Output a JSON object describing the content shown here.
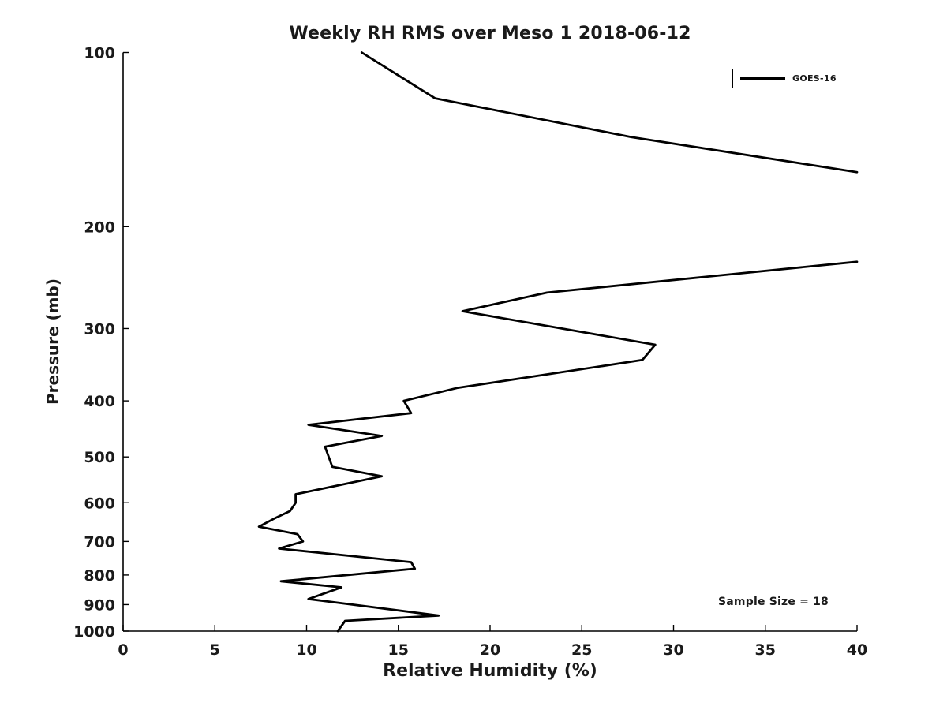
{
  "page": {
    "background": "#ffffff"
  },
  "chart_data": {
    "type": "line",
    "title": "Weekly RH RMS over Meso 1 2018-06-12",
    "xlabel": "Relative Humidity (%)",
    "ylabel": "Pressure (mb)",
    "xlim": [
      0,
      40
    ],
    "ylim": [
      100,
      1000
    ],
    "y_scale": "log",
    "y_inverted": true,
    "grid": false,
    "x_ticks": [
      0,
      5,
      10,
      15,
      20,
      25,
      30,
      35,
      40
    ],
    "y_ticks": [
      100,
      200,
      300,
      400,
      500,
      600,
      700,
      800,
      900,
      1000
    ],
    "legend": {
      "position": "top-right",
      "label": "GOES-16",
      "line_color": "#000000"
    },
    "annotation": {
      "text": "Sample Size = 18"
    },
    "series": [
      {
        "name": "GOES-16",
        "color": "#000000",
        "line_width": 2.8,
        "clipped_at_xmax": true,
        "points_format": [
          "pressure_mb",
          "rh_percent"
        ],
        "segments": [
          [
            [
              100,
              13.0
            ],
            [
              120,
              17.0
            ],
            [
              140,
              27.7
            ],
            [
              161,
              40.0
            ]
          ],
          [
            [
              230,
              40.0
            ],
            [
              260,
              23.1
            ],
            [
              280,
              18.5
            ],
            [
              320,
              29.0
            ],
            [
              340,
              28.3
            ],
            [
              380,
              18.2
            ],
            [
              400,
              15.3
            ],
            [
              420,
              15.7
            ],
            [
              440,
              10.1
            ],
            [
              460,
              14.1
            ],
            [
              480,
              11.0
            ],
            [
              520,
              11.4
            ],
            [
              540,
              14.1
            ],
            [
              580,
              9.4
            ],
            [
              600,
              9.4
            ],
            [
              620,
              9.1
            ],
            [
              640,
              8.2
            ],
            [
              660,
              7.4
            ],
            [
              680,
              9.5
            ],
            [
              700,
              9.8
            ],
            [
              720,
              8.5
            ],
            [
              760,
              15.7
            ],
            [
              780,
              15.9
            ],
            [
              820,
              8.6
            ],
            [
              840,
              11.9
            ],
            [
              880,
              10.1
            ],
            [
              940,
              17.2
            ],
            [
              960,
              12.1
            ],
            [
              1000,
              11.7
            ]
          ]
        ]
      }
    ]
  }
}
